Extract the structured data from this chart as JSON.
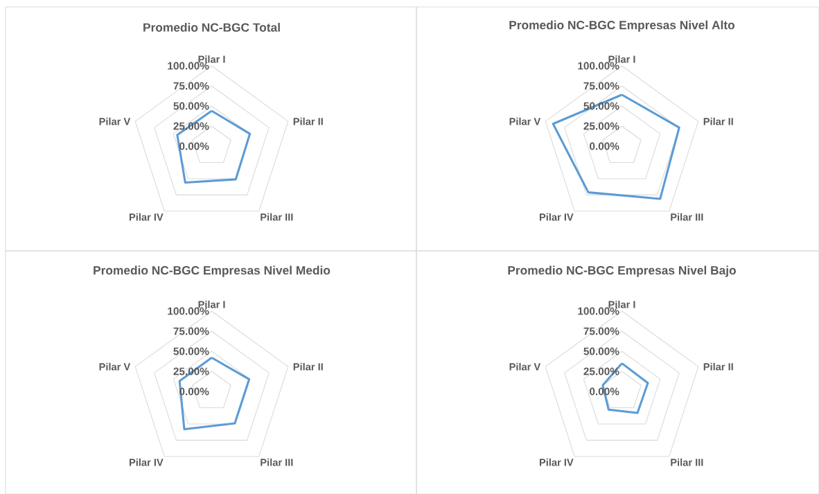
{
  "chart_data": [
    {
      "type": "radar",
      "title": "Promedio NC-BGC Total",
      "categories": [
        "Pilar I",
        "Pilar II",
        "Pilar III",
        "Pilar IV",
        "Pilar V"
      ],
      "grid": true,
      "ylim": [
        0,
        100
      ],
      "yticks": [
        {
          "value": 0,
          "label": "0.00%"
        },
        {
          "value": 25,
          "label": "25.00%"
        },
        {
          "value": 50,
          "label": "50.00%"
        },
        {
          "value": 75,
          "label": "75.00%"
        },
        {
          "value": 100,
          "label": "100.00%"
        }
      ],
      "series": [
        {
          "color": "#5b9bd5",
          "values": [
            44,
            50,
            51,
            56,
            45
          ]
        }
      ]
    },
    {
      "type": "radar",
      "title": "Promedio NC-BGC Empresas Nivel Alto",
      "categories": [
        "Pilar I",
        "Pilar II",
        "Pilar III",
        "Pilar IV",
        "Pilar V"
      ],
      "grid": true,
      "ylim": [
        0,
        100
      ],
      "yticks": [
        {
          "value": 0,
          "label": "0.00%"
        },
        {
          "value": 25,
          "label": "25.00%"
        },
        {
          "value": 50,
          "label": "50.00%"
        },
        {
          "value": 75,
          "label": "75.00%"
        },
        {
          "value": 100,
          "label": "100.00%"
        }
      ],
      "series": [
        {
          "color": "#5b9bd5",
          "values": [
            64,
            75,
            81,
            71,
            90
          ]
        }
      ]
    },
    {
      "type": "radar",
      "title": "Promedio NC-BGC Empresas Nivel Medio",
      "categories": [
        "Pilar I",
        "Pilar II",
        "Pilar III",
        "Pilar IV",
        "Pilar V"
      ],
      "grid": true,
      "ylim": [
        0,
        100
      ],
      "yticks": [
        {
          "value": 0,
          "label": "0.00%"
        },
        {
          "value": 25,
          "label": "25.00%"
        },
        {
          "value": 50,
          "label": "50.00%"
        },
        {
          "value": 75,
          "label": "75.00%"
        },
        {
          "value": 100,
          "label": "100.00%"
        }
      ],
      "series": [
        {
          "color": "#5b9bd5",
          "values": [
            42,
            49,
            49,
            58,
            42
          ]
        }
      ]
    },
    {
      "type": "radar",
      "title": "Promedio NC-BGC Empresas Nivel Bajo",
      "categories": [
        "Pilar I",
        "Pilar II",
        "Pilar III",
        "Pilar IV",
        "Pilar V"
      ],
      "grid": true,
      "ylim": [
        0,
        100
      ],
      "yticks": [
        {
          "value": 0,
          "label": "0.00%"
        },
        {
          "value": 25,
          "label": "25.00%"
        },
        {
          "value": 50,
          "label": "50.00%"
        },
        {
          "value": 75,
          "label": "75.00%"
        },
        {
          "value": 100,
          "label": "100.00%"
        }
      ],
      "series": [
        {
          "color": "#5b9bd5",
          "values": [
            35,
            34,
            33,
            28,
            25
          ]
        }
      ]
    }
  ]
}
